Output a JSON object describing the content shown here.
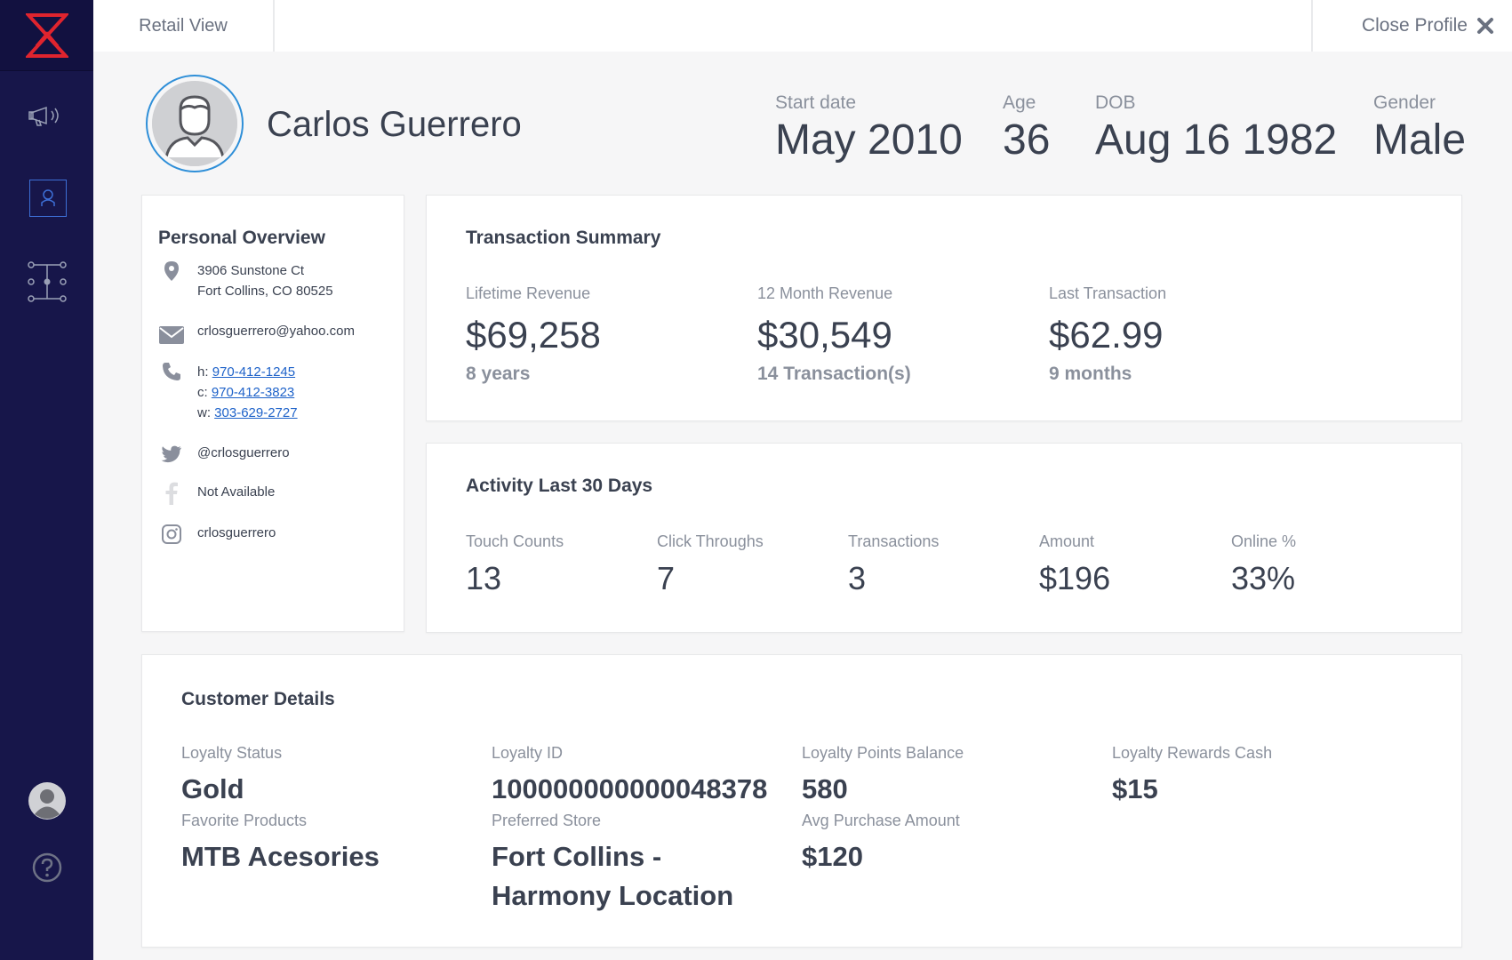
{
  "topbar": {
    "tab_label": "Retail View",
    "close_label": "Close Profile"
  },
  "profile": {
    "name": "Carlos Guerrero",
    "start_date_label": "Start date",
    "start_date": "May 2010",
    "age_label": "Age",
    "age": "36",
    "dob_label": "DOB",
    "dob": "Aug 16 1982",
    "gender_label": "Gender",
    "gender": "Male"
  },
  "personal": {
    "title": "Personal Overview",
    "address_line1": "3906 Sunstone Ct",
    "address_line2": "Fort Collins, CO 80525",
    "email": "crlosguerrero@yahoo.com",
    "phone_home_prefix": "h:",
    "phone_home": "970-412-1245",
    "phone_cell_prefix": "c:",
    "phone_cell": "970-412-3823",
    "phone_work_prefix": "w:",
    "phone_work": "303-629-2727",
    "twitter": "@crlosguerrero",
    "facebook": "Not Available",
    "instagram": "crlosguerrero"
  },
  "transactions": {
    "title": "Transaction Summary",
    "lifetime_label": "Lifetime Revenue",
    "lifetime_value": "$69,258",
    "lifetime_sub": "8 years",
    "month12_label": "12 Month Revenue",
    "month12_value": "$30,549",
    "month12_sub": "14 Transaction(s)",
    "last_label": "Last Transaction",
    "last_value": "$62.99",
    "last_sub": "9 months"
  },
  "activity": {
    "title": "Activity Last 30 Days",
    "items": [
      {
        "label": "Touch Counts",
        "value": "13"
      },
      {
        "label": "Click Throughs",
        "value": "7"
      },
      {
        "label": "Transactions",
        "value": "3"
      },
      {
        "label": "Amount",
        "value": "$196"
      },
      {
        "label": "Online %",
        "value": "33%"
      }
    ]
  },
  "customer": {
    "title": "Customer Details",
    "loyalty_status_label": "Loyalty Status",
    "loyalty_status": "Gold",
    "loyalty_id_label": "Loyalty ID",
    "loyalty_id": "100000000000048378",
    "points_label": "Loyalty Points Balance",
    "points": "580",
    "rewards_label": "Loyalty Rewards Cash",
    "rewards": "$15",
    "favorite_label": "Favorite Products",
    "favorite": "MTB Acesories",
    "store_label": "Preferred Store",
    "store": "Fort Collins - Harmony Location",
    "avg_label": "Avg Purchase Amount",
    "avg": "$120"
  },
  "icons": {
    "logo": "brand-logo",
    "nav": [
      "megaphone-icon",
      "user-icon",
      "flow-icon"
    ],
    "bottom": [
      "avatar-icon",
      "help-icon"
    ]
  },
  "colors": {
    "sidebar": "#17164a",
    "accent_red": "#e0242e",
    "accent_blue": "#2f8fd8",
    "link": "#1e62c9"
  }
}
